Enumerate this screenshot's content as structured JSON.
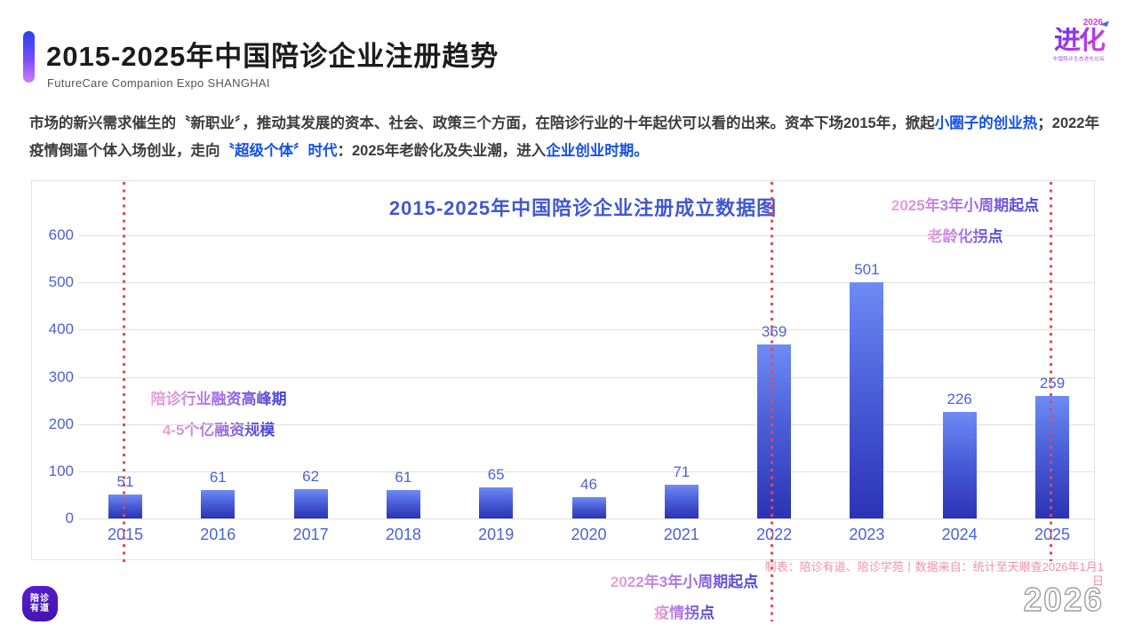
{
  "header": {
    "title": "2015-2025年中国陪诊企业注册趋势",
    "subtitle": "FutureCare Companion Expo SHANGHAI",
    "logo": {
      "year": "2026",
      "name": "进化",
      "tagline": "中国陪诊生态进化论坛"
    }
  },
  "intro": {
    "segments": [
      {
        "text": "市场的新兴需求催生的〝新职业〞，推动其发展的资本、社会、政策三个方面，在陪诊行业的十年起伏可以看的出来。资本下场2015年，掀起",
        "highlight": false
      },
      {
        "text": "小圈子的创业热",
        "highlight": true
      },
      {
        "text": "；2022年疫情倒逼个体入场创业，走向",
        "highlight": false
      },
      {
        "text": "〝超级个体〞时代",
        "highlight": true
      },
      {
        "text": "：2025年老龄化及失业潮，进入",
        "highlight": false
      },
      {
        "text": "企业创业时期。",
        "highlight": true
      }
    ]
  },
  "chart_data": {
    "type": "bar",
    "title": "2015-2025年中国陪诊企业注册成立数据图",
    "categories": [
      "2015",
      "2016",
      "2017",
      "2018",
      "2019",
      "2020",
      "2021",
      "2022",
      "2023",
      "2024",
      "2025"
    ],
    "values": [
      51,
      61,
      62,
      61,
      65,
      46,
      71,
      369,
      501,
      226,
      259
    ],
    "xlabel": "",
    "ylabel": "",
    "ylim": [
      0,
      600
    ],
    "yticks": [
      0,
      100,
      200,
      300,
      400,
      500,
      600
    ],
    "grid": true,
    "legend": "none",
    "bar_gradient": [
      "#6e8bf4",
      "#2b33b4"
    ],
    "label_color": "#4a63d9",
    "marker_line_color": "#e8484f",
    "marker_years": [
      "2015",
      "2022",
      "2025"
    ],
    "annotations": [
      {
        "lines": [
          "陪诊行业融资高峰期",
          "4-5个亿融资规模"
        ],
        "anchor": "2015"
      },
      {
        "lines": [
          "2022年3年小周期起点",
          "疫情拐点"
        ],
        "anchor": "2022"
      },
      {
        "lines": [
          "2025年3年小周期起点",
          "老龄化拐点"
        ],
        "anchor": "2025"
      }
    ]
  },
  "annotations": {
    "funding": {
      "line1": "陪诊行业融资高峰期",
      "line2": "4-5个亿融资规模"
    },
    "cycle2025": {
      "line1": "2025年3年小周期起点",
      "line2": "老龄化拐点"
    },
    "cycle2022": {
      "line1": "2022年3年小周期起点",
      "line2": "疫情拐点"
    }
  },
  "footer": {
    "attribution": "制表：陪诊有道、陪诊学苑丨数据来自：统计至天眼查2026年1月1日",
    "watermark": "2026",
    "logo_line1": "陪诊",
    "logo_line2": "有道"
  },
  "colors": {
    "accent_gradient": [
      "#2741f2",
      "#d07bfb"
    ],
    "highlight_blue": "#1450ee",
    "chart_blue": "#4a63d9",
    "note_gradient": [
      "#f3a2da",
      "#3c41d6"
    ],
    "attribution_pink": "#f092a8",
    "marker_red": "#e8484f"
  }
}
